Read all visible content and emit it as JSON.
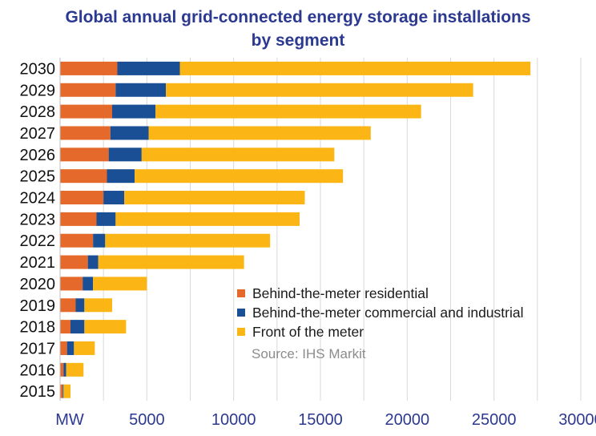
{
  "chart_data": {
    "type": "bar",
    "orientation": "horizontal",
    "stacked": true,
    "title": "Global annual grid-connected energy storage installations by segment",
    "title_lines": [
      "Global annual grid-connected energy storage installations",
      "by segment"
    ],
    "xlabel": "MW",
    "ylabel": "",
    "xlim": [
      0,
      30000
    ],
    "x_ticks": [
      5000,
      10000,
      15000,
      20000,
      25000,
      30000
    ],
    "x_tick_labels": [
      "5000",
      "10000",
      "15000",
      "20000",
      "25000",
      "30000"
    ],
    "grid": "vertical gridlines",
    "categories": [
      "2030",
      "2029",
      "2028",
      "2027",
      "2026",
      "2025",
      "2024",
      "2023",
      "2022",
      "2021",
      "2020",
      "2019",
      "2018",
      "2017",
      "2016",
      "2015"
    ],
    "series": [
      {
        "name": "Behind-the-meter residential",
        "color": "#e4692a",
        "values": [
          3300,
          3200,
          3000,
          2900,
          2800,
          2700,
          2500,
          2100,
          1900,
          1600,
          1300,
          900,
          600,
          400,
          200,
          150
        ]
      },
      {
        "name": "Behind-the-meter commercial and industrial",
        "color": "#1a4f96",
        "values": [
          3600,
          2900,
          2500,
          2200,
          1900,
          1600,
          1200,
          1100,
          700,
          600,
          600,
          500,
          800,
          400,
          150,
          50
        ]
      },
      {
        "name": "Front of the meter",
        "color": "#fbb616",
        "values": [
          20200,
          17700,
          15300,
          12800,
          11100,
          12000,
          10400,
          10600,
          9500,
          8400,
          3100,
          1600,
          2400,
          1200,
          1000,
          400
        ]
      }
    ],
    "legend_position": "center-right",
    "annotation": "Source: IHS Markit"
  }
}
